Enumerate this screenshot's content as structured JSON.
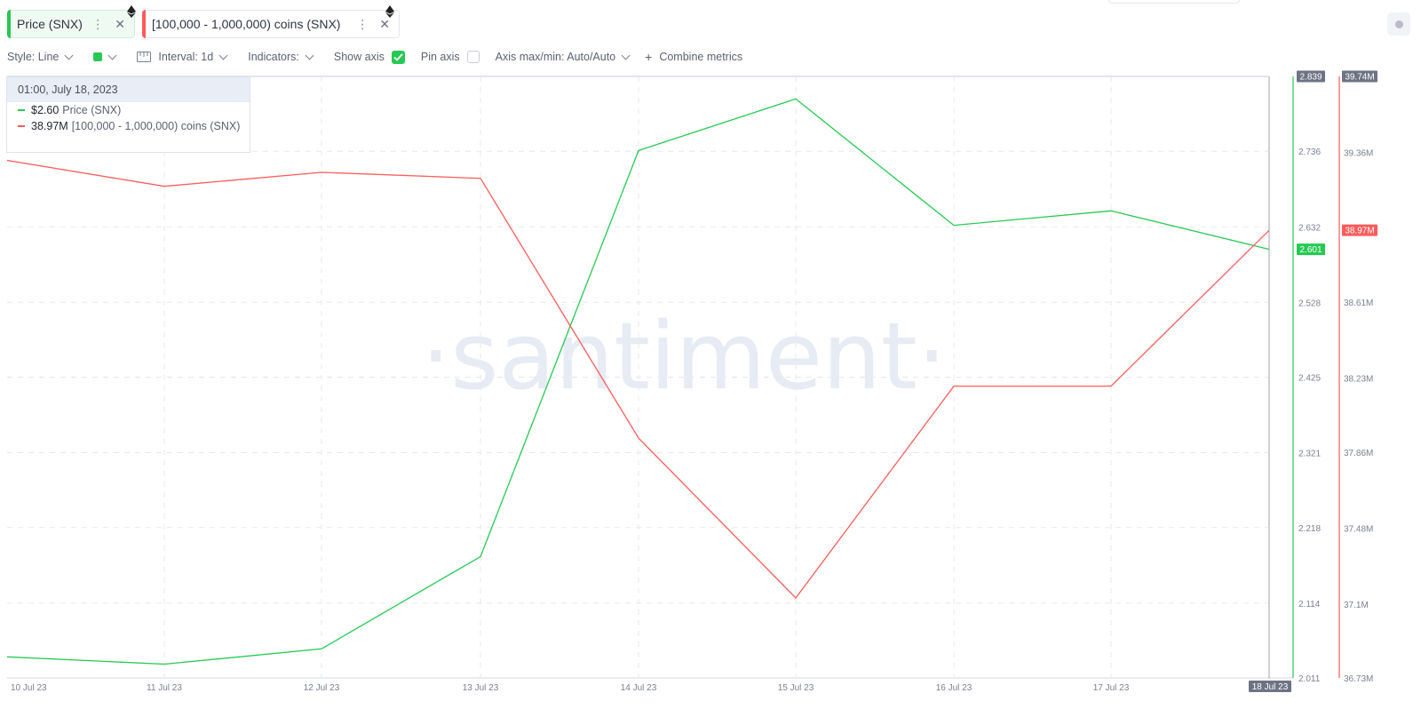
{
  "metric_tabs": [
    {
      "label": "Price (SNX)",
      "color": "#26c953"
    },
    {
      "label": "[100,000 - 1,000,000) coins (SNX)",
      "color": "#ff5b5b"
    }
  ],
  "toolbar": {
    "style_label": "Style: Line",
    "interval_label": "Interval: 1d",
    "indicators_label": "Indicators:",
    "show_axis_label": "Show axis",
    "pin_axis_label": "Pin axis",
    "axis_maxmin_label": "Axis max/min: Auto/Auto",
    "combine_label": "Combine metrics",
    "combine_icon": "+"
  },
  "tooltip": {
    "date": "01:00, July 18, 2023",
    "rows": [
      {
        "value": "$2.60",
        "name": "Price (SNX)"
      },
      {
        "value": "38.97M",
        "name": "[100,000  - 1,000,000) coins (SNX)"
      }
    ]
  },
  "watermark": "·santiment·",
  "colors": {
    "price": "#26c953",
    "holders": "#ff5b5b",
    "accent": "#26c953",
    "label_bg": "#6e7384"
  },
  "chart_data": {
    "type": "line",
    "x": [
      "10 Jul 23",
      "11 Jul 23",
      "12 Jul 23",
      "13 Jul 23",
      "14 Jul 23",
      "15 Jul 23",
      "16 Jul 23",
      "17 Jul 23",
      "18 Jul 23"
    ],
    "x_tick_labels": [
      "10 Jul 23",
      "11 Jul 23",
      "12 Jul 23",
      "13 Jul 23",
      "14 Jul 23",
      "15 Jul 23",
      "16 Jul 23",
      "17 Jul 23"
    ],
    "hover_x_label": "18 Jul 23",
    "series": [
      {
        "name": "Price (SNX)",
        "axis": "left",
        "values": [
          2.04,
          2.03,
          2.051,
          2.178,
          2.737,
          2.808,
          2.634,
          2.654,
          2.601
        ],
        "last_label": "2.601",
        "max_label": "2.839"
      },
      {
        "name": "[100,000 - 1,000,000) coins (SNX)",
        "axis": "right",
        "values": [
          39.32,
          39.19,
          39.26,
          39.23,
          37.93,
          37.13,
          38.19,
          38.19,
          38.97
        ],
        "last_label": "38.97M",
        "max_label": "39.74M"
      }
    ],
    "left_axis": {
      "ylim": [
        2.011,
        2.839
      ],
      "ticks": [
        2.011,
        2.114,
        2.218,
        2.321,
        2.425,
        2.528,
        2.632,
        2.736
      ],
      "tick_labels": [
        "2.011",
        "2.114",
        "2.218",
        "2.321",
        "2.425",
        "2.528",
        "2.632",
        "2.736"
      ]
    },
    "right_axis": {
      "ylim": [
        36.73,
        39.74
      ],
      "ticks": [
        36.73,
        37.1,
        37.48,
        37.86,
        38.23,
        38.61,
        39.36
      ],
      "tick_labels": [
        "36.73M",
        "37.1M",
        "37.48M",
        "37.86M",
        "38.23M",
        "38.61M",
        "39.36M"
      ]
    },
    "grid": true,
    "legend": "top-left"
  }
}
